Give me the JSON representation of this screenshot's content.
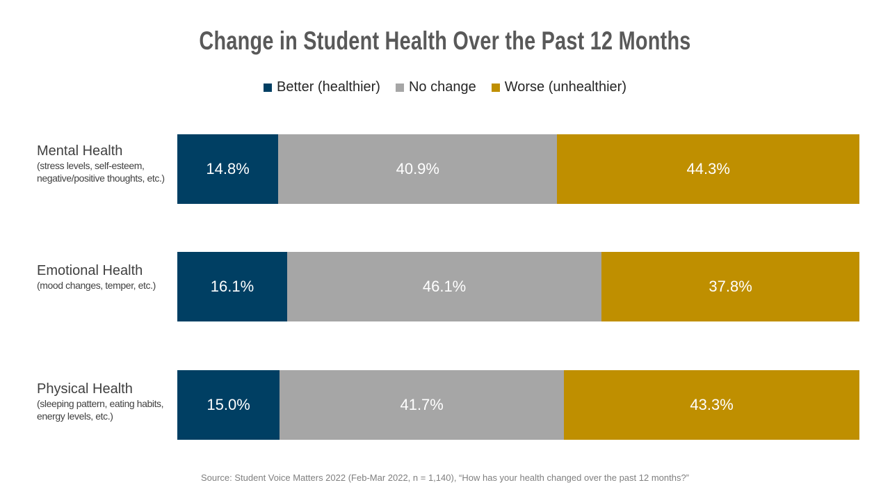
{
  "chart_data": {
    "type": "bar",
    "orientation": "horizontal",
    "stacked": true,
    "title": "Change in Student Health Over the Past 12 Months",
    "categories": [
      {
        "name": "Mental Health",
        "description": "(stress levels, self-esteem, negative/positive thoughts, etc.)"
      },
      {
        "name": "Emotional Health",
        "description": "(mood changes, temper, etc.)"
      },
      {
        "name": "Physical Health",
        "description": "(sleeping pattern, eating habits, energy levels, etc.)"
      }
    ],
    "series": [
      {
        "name": "Better (healthier)",
        "color": "#003f63",
        "values": [
          14.8,
          16.1,
          15.0
        ],
        "labels": [
          "14.8%",
          "16.1%",
          "15.0%"
        ]
      },
      {
        "name": "No change",
        "color": "#a6a6a6",
        "values": [
          40.9,
          46.1,
          41.7
        ],
        "labels": [
          "40.9%",
          "46.1%",
          "41.7%"
        ]
      },
      {
        "name": "Worse (unhealthier)",
        "color": "#bf8f00",
        "values": [
          44.3,
          37.8,
          43.3
        ],
        "labels": [
          "44.3%",
          "37.8%",
          "43.3%"
        ]
      }
    ],
    "legend_position": "top",
    "grid": false,
    "source": "Source: Student Voice Matters 2022 (Feb-Mar 2022, n = 1,140), “How has your health changed over the past 12 months?”"
  }
}
